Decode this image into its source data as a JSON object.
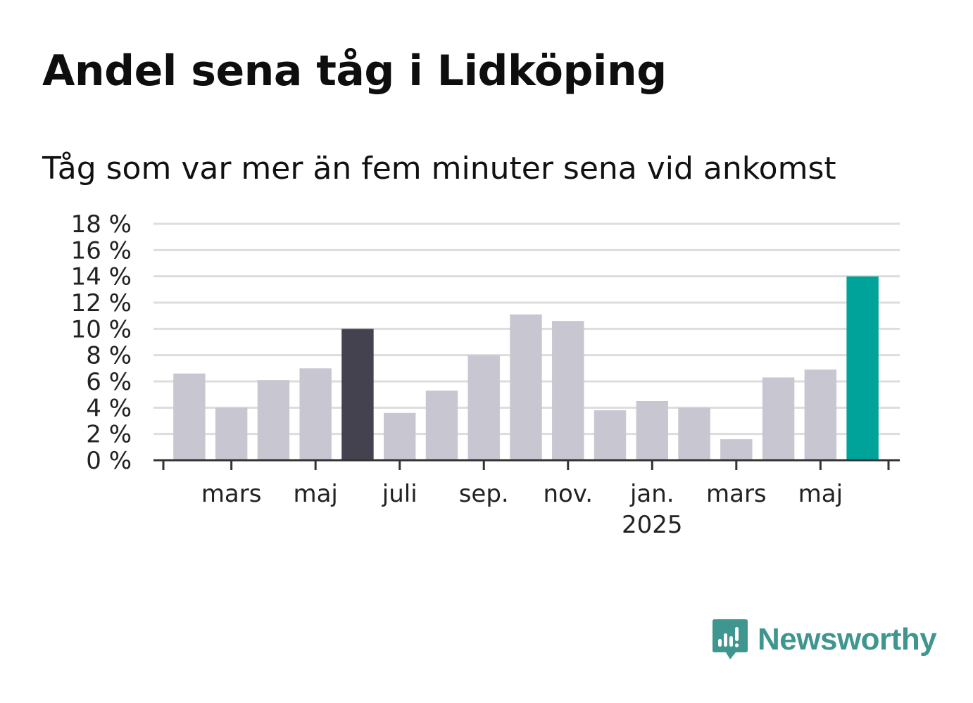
{
  "title": "Andel sena tåg i Lidköping",
  "subtitle": "Tåg som var mer än fem minuter sena vid ankomst",
  "brand": {
    "name": "Newsworthy",
    "color": "#3e968f",
    "icon": "chart-speech-bubble-icon"
  },
  "chart_data": {
    "type": "bar",
    "title": "Andel sena tåg i Lidköping",
    "subtitle": "Tåg som var mer än fem minuter sena vid ankomst",
    "categories": [
      "2024-02",
      "2024-03",
      "2024-04",
      "2024-05",
      "2024-06",
      "2024-07",
      "2024-08",
      "2024-09",
      "2024-10",
      "2024-11",
      "2024-12",
      "2025-01",
      "2025-02",
      "2025-03",
      "2025-04",
      "2025-05",
      "2025-06"
    ],
    "values": [
      6.6,
      4.0,
      6.1,
      7.0,
      10.0,
      3.6,
      5.3,
      8.0,
      11.1,
      10.6,
      3.8,
      4.5,
      4.0,
      1.6,
      6.3,
      6.9,
      14.0
    ],
    "highlight_colors": {
      "2024-06": "#43424e",
      "2025-06": "#00a39a"
    },
    "default_color": "#c8c7d1",
    "x_tick_labels": [
      {
        "category": "2024-03",
        "label": "mars"
      },
      {
        "category": "2024-05",
        "label": "maj"
      },
      {
        "category": "2024-07",
        "label": "juli"
      },
      {
        "category": "2024-09",
        "label": "sep."
      },
      {
        "category": "2024-11",
        "label": "nov."
      },
      {
        "category": "2025-01",
        "label": "jan.",
        "sublabel": "2025"
      },
      {
        "category": "2025-03",
        "label": "mars"
      },
      {
        "category": "2025-05",
        "label": "maj"
      }
    ],
    "y_ticks": [
      0,
      2,
      4,
      6,
      8,
      10,
      12,
      14,
      16,
      18
    ],
    "y_tick_suffix": " %",
    "ylim": [
      0,
      18
    ],
    "xlabel": "",
    "ylabel": "",
    "grid": true,
    "gridline_color": "#dddddd",
    "axis_color": "#333333"
  }
}
